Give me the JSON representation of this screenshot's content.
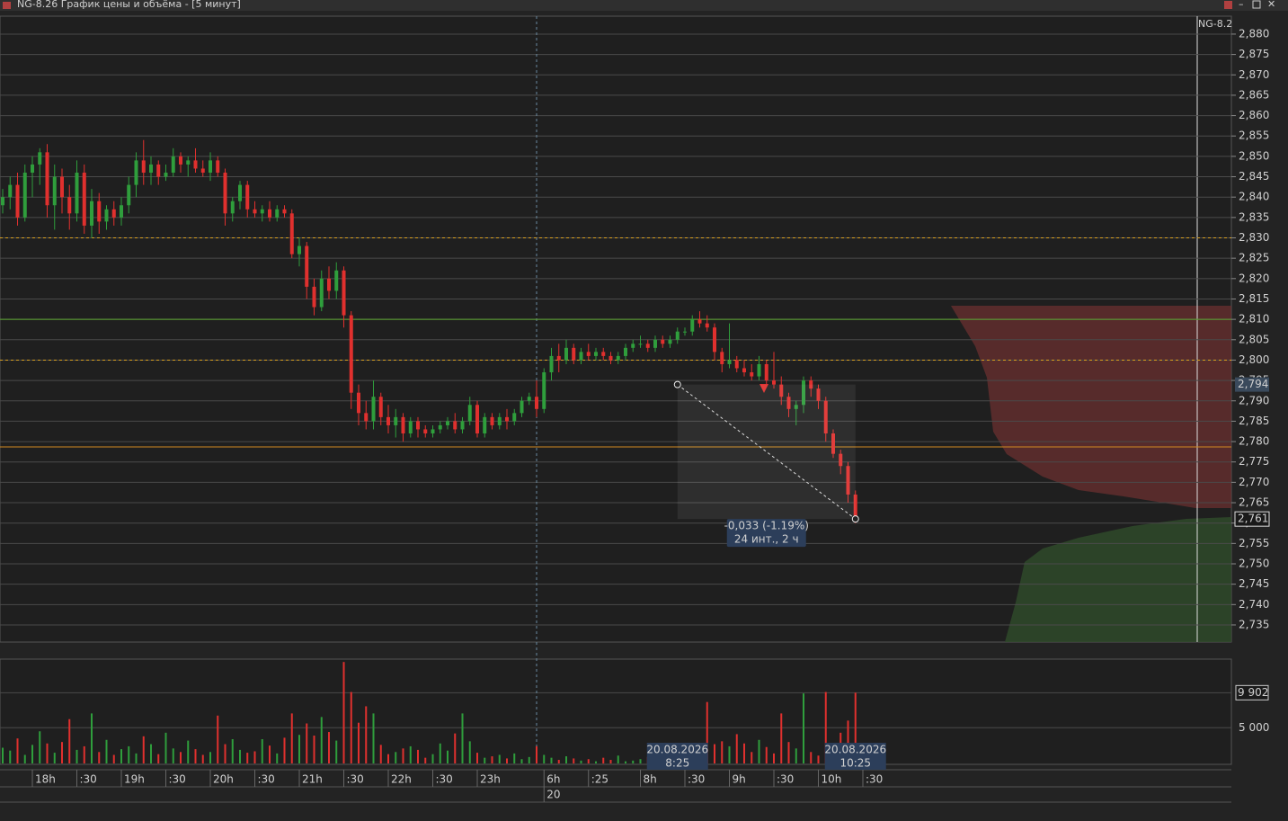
{
  "window": {
    "title": "NG-8.26 График цены и объёма - [5 минут]",
    "instrument": "NG-8.2"
  },
  "chart_data": {
    "type": "candlestick",
    "ylim": [
      2.7308,
      2.8844
    ],
    "yticks": [
      {
        "value": 2.88,
        "label": "2,880"
      },
      {
        "value": 2.875,
        "label": "2,875"
      },
      {
        "value": 2.87,
        "label": "2,870"
      },
      {
        "value": 2.865,
        "label": "2,865"
      },
      {
        "value": 2.86,
        "label": "2,860"
      },
      {
        "value": 2.855,
        "label": "2,855"
      },
      {
        "value": 2.85,
        "label": "2,850"
      },
      {
        "value": 2.845,
        "label": "2,845"
      },
      {
        "value": 2.84,
        "label": "2,840"
      },
      {
        "value": 2.835,
        "label": "2,835"
      },
      {
        "value": 2.83,
        "label": "2,830"
      },
      {
        "value": 2.825,
        "label": "2,825"
      },
      {
        "value": 2.82,
        "label": "2,820"
      },
      {
        "value": 2.815,
        "label": "2,815"
      },
      {
        "value": 2.81,
        "label": "2,810"
      },
      {
        "value": 2.805,
        "label": "2,805"
      },
      {
        "value": 2.8,
        "label": "2,800"
      },
      {
        "value": 2.795,
        "label": "2,795"
      },
      {
        "value": 2.79,
        "label": "2,790"
      },
      {
        "value": 2.785,
        "label": "2,785"
      },
      {
        "value": 2.78,
        "label": "2,780"
      },
      {
        "value": 2.775,
        "label": "2,775"
      },
      {
        "value": 2.77,
        "label": "2,770"
      },
      {
        "value": 2.765,
        "label": "2,765"
      },
      {
        "value": 2.76,
        "label": "2,760"
      },
      {
        "value": 2.755,
        "label": "2,755"
      },
      {
        "value": 2.75,
        "label": "2,750"
      },
      {
        "value": 2.745,
        "label": "2,745"
      },
      {
        "value": 2.74,
        "label": "2,740"
      },
      {
        "value": 2.735,
        "label": "2,735"
      }
    ],
    "grid": true,
    "up_color": "#2f9e3c",
    "down_color": "#e0302e",
    "candles": [
      [
        2.838,
        2.842,
        2.836,
        2.84
      ],
      [
        2.84,
        2.845,
        2.837,
        2.843
      ],
      [
        2.843,
        2.846,
        2.833,
        2.835
      ],
      [
        2.835,
        2.848,
        2.834,
        2.846
      ],
      [
        2.846,
        2.85,
        2.84,
        2.848
      ],
      [
        2.848,
        2.852,
        2.843,
        2.851
      ],
      [
        2.851,
        2.853,
        2.835,
        2.838
      ],
      [
        2.838,
        2.848,
        2.832,
        2.845
      ],
      [
        2.845,
        2.847,
        2.836,
        2.84
      ],
      [
        2.84,
        2.843,
        2.832,
        2.836
      ],
      [
        2.836,
        2.849,
        2.834,
        2.846
      ],
      [
        2.846,
        2.848,
        2.831,
        2.833
      ],
      [
        2.833,
        2.842,
        2.83,
        2.839
      ],
      [
        2.839,
        2.841,
        2.831,
        2.834
      ],
      [
        2.834,
        2.838,
        2.832,
        2.837
      ],
      [
        2.837,
        2.839,
        2.833,
        2.835
      ],
      [
        2.835,
        2.84,
        2.833,
        2.838
      ],
      [
        2.838,
        2.845,
        2.836,
        2.843
      ],
      [
        2.843,
        2.851,
        2.84,
        2.849
      ],
      [
        2.849,
        2.854,
        2.843,
        2.846
      ],
      [
        2.846,
        2.85,
        2.843,
        2.848
      ],
      [
        2.848,
        2.849,
        2.843,
        2.845
      ],
      [
        2.845,
        2.848,
        2.844,
        2.846
      ],
      [
        2.846,
        2.852,
        2.845,
        2.85
      ],
      [
        2.85,
        2.851,
        2.846,
        2.848
      ],
      [
        2.848,
        2.85,
        2.845,
        2.849
      ],
      [
        2.849,
        2.852,
        2.846,
        2.847
      ],
      [
        2.847,
        2.849,
        2.845,
        2.846
      ],
      [
        2.846,
        2.851,
        2.844,
        2.849
      ],
      [
        2.849,
        2.85,
        2.845,
        2.846
      ],
      [
        2.846,
        2.847,
        2.833,
        2.836
      ],
      [
        2.836,
        2.84,
        2.834,
        2.839
      ],
      [
        2.839,
        2.844,
        2.837,
        2.843
      ],
      [
        2.843,
        2.844,
        2.835,
        2.837
      ],
      [
        2.837,
        2.839,
        2.835,
        2.836
      ],
      [
        2.836,
        2.838,
        2.834,
        2.837
      ],
      [
        2.837,
        2.839,
        2.834,
        2.835
      ],
      [
        2.835,
        2.838,
        2.834,
        2.837
      ],
      [
        2.837,
        2.838,
        2.835,
        2.836
      ],
      [
        2.836,
        2.837,
        2.825,
        2.826
      ],
      [
        2.826,
        2.83,
        2.823,
        2.828
      ],
      [
        2.828,
        2.829,
        2.815,
        2.818
      ],
      [
        2.818,
        2.82,
        2.811,
        2.813
      ],
      [
        2.813,
        2.822,
        2.812,
        2.82
      ],
      [
        2.82,
        2.823,
        2.815,
        2.817
      ],
      [
        2.817,
        2.824,
        2.815,
        2.822
      ],
      [
        2.822,
        2.823,
        2.808,
        2.811
      ],
      [
        2.811,
        2.812,
        2.788,
        2.792
      ],
      [
        2.792,
        2.794,
        2.784,
        2.787
      ],
      [
        2.787,
        2.79,
        2.783,
        2.785
      ],
      [
        2.785,
        2.795,
        2.783,
        2.791
      ],
      [
        2.791,
        2.792,
        2.784,
        2.786
      ],
      [
        2.786,
        2.789,
        2.782,
        2.784
      ],
      [
        2.784,
        2.788,
        2.781,
        2.786
      ],
      [
        2.786,
        2.787,
        2.78,
        2.782
      ],
      [
        2.782,
        2.786,
        2.781,
        2.785
      ],
      [
        2.785,
        2.786,
        2.781,
        2.783
      ],
      [
        2.783,
        2.784,
        2.781,
        2.782
      ],
      [
        2.782,
        2.784,
        2.781,
        2.783
      ],
      [
        2.783,
        2.785,
        2.782,
        2.784
      ],
      [
        2.784,
        2.786,
        2.783,
        2.785
      ],
      [
        2.785,
        2.787,
        2.782,
        2.783
      ],
      [
        2.783,
        2.786,
        2.782,
        2.785
      ],
      [
        2.785,
        2.791,
        2.784,
        2.789
      ],
      [
        2.789,
        2.79,
        2.781,
        2.782
      ],
      [
        2.782,
        2.787,
        2.781,
        2.786
      ],
      [
        2.786,
        2.787,
        2.783,
        2.784
      ],
      [
        2.784,
        2.787,
        2.783,
        2.786
      ],
      [
        2.786,
        2.788,
        2.783,
        2.785
      ],
      [
        2.785,
        2.788,
        2.784,
        2.787
      ],
      [
        2.787,
        2.791,
        2.786,
        2.79
      ],
      [
        2.79,
        2.792,
        2.789,
        2.791
      ],
      [
        2.791,
        2.795,
        2.786,
        2.788
      ],
      [
        2.788,
        2.798,
        2.787,
        2.797
      ],
      [
        2.797,
        2.803,
        2.795,
        2.801
      ],
      [
        2.801,
        2.804,
        2.797,
        2.8
      ],
      [
        2.8,
        2.805,
        2.799,
        2.803
      ],
      [
        2.803,
        2.804,
        2.799,
        2.8
      ],
      [
        2.8,
        2.803,
        2.799,
        2.802
      ],
      [
        2.802,
        2.804,
        2.8,
        2.801
      ],
      [
        2.801,
        2.803,
        2.8,
        2.802
      ],
      [
        2.802,
        2.803,
        2.8,
        2.801
      ],
      [
        2.801,
        2.802,
        2.799,
        2.8
      ],
      [
        2.8,
        2.802,
        2.799,
        2.801
      ],
      [
        2.801,
        2.804,
        2.8,
        2.803
      ],
      [
        2.803,
        2.805,
        2.802,
        2.804
      ],
      [
        2.804,
        2.806,
        2.803,
        2.804
      ],
      [
        2.804,
        2.805,
        2.802,
        2.803
      ],
      [
        2.803,
        2.806,
        2.802,
        2.805
      ],
      [
        2.805,
        2.806,
        2.803,
        2.804
      ],
      [
        2.804,
        2.806,
        2.803,
        2.805
      ],
      [
        2.805,
        2.808,
        2.804,
        2.807
      ],
      [
        2.807,
        2.808,
        2.806,
        2.807
      ],
      [
        2.807,
        2.811,
        2.806,
        2.81
      ],
      [
        2.81,
        2.812,
        2.808,
        2.809
      ],
      [
        2.809,
        2.811,
        2.807,
        2.808
      ],
      [
        2.808,
        2.809,
        2.8,
        2.802
      ],
      [
        2.802,
        2.803,
        2.797,
        2.799
      ],
      [
        2.799,
        2.809,
        2.798,
        2.8
      ],
      [
        2.8,
        2.801,
        2.797,
        2.798
      ],
      [
        2.798,
        2.8,
        2.796,
        2.797
      ],
      [
        2.797,
        2.799,
        2.795,
        2.796
      ],
      [
        2.796,
        2.801,
        2.795,
        2.799
      ],
      [
        2.799,
        2.8,
        2.794,
        2.795
      ],
      [
        2.795,
        2.802,
        2.793,
        2.794
      ],
      [
        2.794,
        2.796,
        2.789,
        2.791
      ],
      [
        2.791,
        2.792,
        2.786,
        2.788
      ],
      [
        2.788,
        2.79,
        2.784,
        2.789
      ],
      [
        2.789,
        2.796,
        2.787,
        2.795
      ],
      [
        2.795,
        2.796,
        2.791,
        2.793
      ],
      [
        2.793,
        2.794,
        2.788,
        2.79
      ],
      [
        2.79,
        2.791,
        2.78,
        2.782
      ],
      [
        2.782,
        2.783,
        2.776,
        2.777
      ],
      [
        2.777,
        2.778,
        2.772,
        2.774
      ],
      [
        2.774,
        2.775,
        2.765,
        2.767
      ],
      [
        2.767,
        2.768,
        2.76,
        2.761
      ]
    ],
    "xticks": [
      {
        "value": 4,
        "label": "18h"
      },
      {
        "value": 10,
        "label": ":30"
      },
      {
        "value": 16,
        "label": "19h"
      },
      {
        "value": 22,
        "label": ":30"
      },
      {
        "value": 28,
        "label": "20h"
      },
      {
        "value": 34,
        "label": ":30"
      },
      {
        "value": 40,
        "label": "21h"
      },
      {
        "value": 46,
        "label": ":30"
      },
      {
        "value": 52,
        "label": "22h"
      },
      {
        "value": 58,
        "label": ":30"
      },
      {
        "value": 64,
        "label": "23h"
      },
      {
        "value": 73,
        "label": "6h"
      },
      {
        "value": 79,
        "label": ":25"
      },
      {
        "value": 86,
        "label": "8h"
      },
      {
        "value": 92,
        "label": ":30"
      },
      {
        "value": 98,
        "label": "9h"
      },
      {
        "value": 104,
        "label": ":30"
      },
      {
        "value": 110,
        "label": "10h"
      },
      {
        "value": 116,
        "label": ":30"
      }
    ],
    "date_tick": {
      "value": 73,
      "label": "20"
    },
    "session_break": 72,
    "levels": [
      {
        "value": 2.83,
        "color": "#d9a020",
        "dashed": true
      },
      {
        "value": 2.81,
        "color": "#5da832",
        "dashed": false
      },
      {
        "value": 2.8,
        "color": "#d9a020",
        "dashed": true
      },
      {
        "value": 2.7787,
        "color": "#d08a20",
        "dashed": false
      }
    ],
    "price_markers": [
      {
        "value": 2.794,
        "label": "2,794"
      },
      {
        "value": 2.761,
        "label": "2,761"
      }
    ],
    "measure": {
      "from": [
        91,
        2.794
      ],
      "to": [
        115,
        2.761
      ],
      "text": [
        "-0,033 (-1.19%)",
        "24 инт., 2 ч"
      ]
    },
    "cursor_labels": [
      {
        "value": 91,
        "date": "20.08.2026",
        "time": "8:25"
      },
      {
        "value": 115,
        "date": "20.08.2026",
        "time": "10:25"
      }
    ],
    "volume": {
      "ylim": [
        0,
        14600
      ],
      "yticks": [
        {
          "value": 5000,
          "label": "5 000"
        }
      ],
      "marker": {
        "value": 9902,
        "label": "9 902"
      },
      "values": [
        2200,
        1800,
        3500,
        1200,
        2600,
        4500,
        2800,
        1500,
        3000,
        6200,
        1900,
        2400,
        7000,
        1600,
        3300,
        1200,
        2000,
        2400,
        1400,
        3800,
        2700,
        1300,
        4300,
        2100,
        1600,
        3200,
        2000,
        1200,
        1600,
        6700,
        2700,
        3400,
        1900,
        1500,
        1700,
        3400,
        2500,
        1400,
        3600,
        7000,
        4000,
        5600,
        3900,
        6500,
        4400,
        3200,
        14200,
        10000,
        5700,
        8000,
        7000,
        2600,
        1300,
        1600,
        2100,
        2400,
        1900,
        800,
        1300,
        2800,
        1800,
        4200,
        7000,
        3100,
        1500,
        800,
        1000,
        1200,
        700,
        1400,
        600,
        900,
        2400,
        1200,
        800,
        500,
        1000,
        700,
        400,
        600,
        300,
        800,
        500,
        1100,
        300,
        400,
        600,
        900,
        1200,
        500,
        800,
        1300,
        600,
        400,
        1800,
        8600,
        2700,
        3100,
        2400,
        4100,
        2800,
        1600,
        3300,
        2300,
        1400,
        7000,
        3000,
        2100,
        9800,
        1600,
        1100,
        10000,
        2600,
        4300,
        6000,
        9902
      ]
    }
  }
}
